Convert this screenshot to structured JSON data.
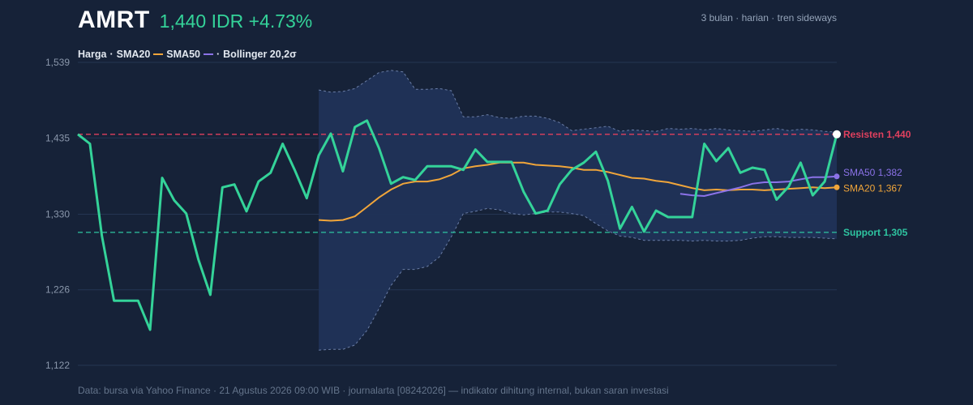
{
  "header": {
    "ticker": "AMRT",
    "price_line": "1,440 IDR +4.73%",
    "meta": "3 bulan · harian · tren sideways"
  },
  "legend": {
    "price": "Harga",
    "sma20": "SMA20",
    "sma50": "SMA50",
    "bollinger": "Bollinger 20,2σ",
    "sep": "·"
  },
  "footer": "Data: bursa via Yahoo Finance · 21 Agustus 2026 09:00 WIB · journalarta [08242026] — indikator dihitung internal, bukan saran investasi",
  "colors": {
    "price": "#34d399",
    "sma20": "#f0a53a",
    "sma50": "#8b72e8",
    "resistance": "#e0405e",
    "support": "#2ec4a0",
    "band_fill": "#203357",
    "band_edge": "#6a7da6",
    "grid": "#243552"
  },
  "chart_data": {
    "type": "line",
    "ylim": [
      1122,
      1539
    ],
    "yticks": [
      "1,539",
      "1,435",
      "1,330",
      "1,226",
      "1,122"
    ],
    "ytick_values": [
      1539,
      1435,
      1330,
      1226,
      1122
    ],
    "grid": "horizontal",
    "series": [
      {
        "name": "Harga",
        "values": [
          1440,
          1427,
          1300,
          1211,
          1211,
          1211,
          1171,
          1380,
          1349,
          1331,
          1268,
          1219,
          1367,
          1371,
          1334,
          1375,
          1387,
          1427,
          1391,
          1352,
          1411,
          1441,
          1389,
          1450,
          1459,
          1421,
          1372,
          1381,
          1377,
          1396,
          1396,
          1396,
          1391,
          1419,
          1402,
          1402,
          1402,
          1361,
          1331,
          1335,
          1371,
          1391,
          1401,
          1416,
          1376,
          1310,
          1340,
          1306,
          1335,
          1326,
          1326,
          1326,
          1427,
          1403,
          1421,
          1387,
          1394,
          1391,
          1350,
          1368,
          1401,
          1356,
          1375,
          1440
        ]
      },
      {
        "name": "SMA20",
        "values": [
          1322,
          1321,
          1322,
          1327,
          1340,
          1353,
          1364,
          1372,
          1375,
          1375,
          1378,
          1384,
          1393,
          1396,
          1398,
          1401,
          1401,
          1401,
          1398,
          1397,
          1396,
          1394,
          1391,
          1391,
          1388,
          1384,
          1380,
          1379,
          1376,
          1374,
          1370,
          1366,
          1363,
          1364,
          1363,
          1364,
          1364,
          1363,
          1364,
          1365,
          1366,
          1367,
          1366,
          1367
        ]
      },
      {
        "name": "SMA50",
        "values": [
          1358,
          1356,
          1355,
          1359,
          1363,
          1367,
          1372,
          1374,
          1374,
          1375,
          1378,
          1381,
          1381,
          1382
        ]
      }
    ],
    "bollinger": {
      "name": "Bollinger 20,2σ",
      "upper": [
        1501,
        1498,
        1499,
        1503,
        1514,
        1525,
        1528,
        1526,
        1502,
        1502,
        1503,
        1500,
        1464,
        1464,
        1467,
        1463,
        1462,
        1465,
        1465,
        1462,
        1456,
        1445,
        1447,
        1449,
        1451,
        1444,
        1446,
        1445,
        1444,
        1448,
        1447,
        1448,
        1446,
        1448,
        1446,
        1445,
        1444,
        1446,
        1448,
        1445,
        1447,
        1446,
        1444,
        1443
      ],
      "lower": [
        1143,
        1144,
        1144,
        1150,
        1170,
        1200,
        1232,
        1254,
        1254,
        1258,
        1271,
        1299,
        1331,
        1334,
        1338,
        1336,
        1331,
        1329,
        1331,
        1333,
        1333,
        1331,
        1328,
        1317,
        1307,
        1300,
        1298,
        1294,
        1294,
        1294,
        1294,
        1293,
        1294,
        1293,
        1293,
        1294,
        1297,
        1299,
        1299,
        1298,
        1298,
        1298,
        1297,
        1296
      ]
    },
    "resistance": {
      "label": "Resisten 1,440",
      "value": 1440
    },
    "support": {
      "label": "Support 1,305",
      "value": 1305
    },
    "end_labels": {
      "sma50": "SMA50 1,382",
      "sma20": "SMA20 1,367"
    }
  }
}
